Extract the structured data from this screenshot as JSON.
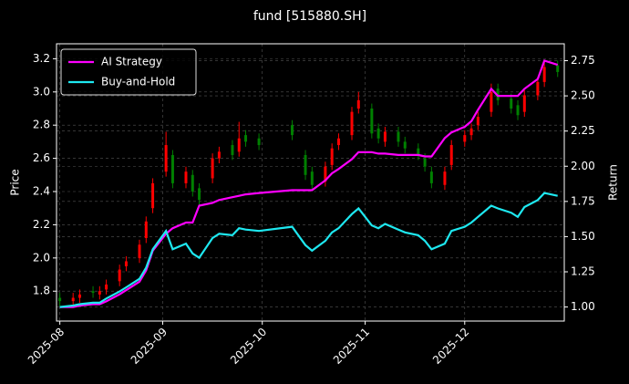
{
  "chart_data": {
    "type": "candlestick",
    "title": "fund [515880.SH]",
    "ylabel": "Price",
    "y2label": "Return",
    "x": [
      "2025-08-01",
      "2025-08-05",
      "2025-08-07",
      "2025-08-11",
      "2025-08-13",
      "2025-08-15",
      "2025-08-19",
      "2025-08-21",
      "2025-08-25",
      "2025-08-27",
      "2025-08-29",
      "2025-09-02",
      "2025-09-04",
      "2025-09-08",
      "2025-09-10",
      "2025-09-12",
      "2025-09-16",
      "2025-09-18",
      "2025-09-22",
      "2025-09-24",
      "2025-09-26",
      "2025-09-30",
      "2025-10-10",
      "2025-10-14",
      "2025-10-16",
      "2025-10-20",
      "2025-10-22",
      "2025-10-24",
      "2025-10-28",
      "2025-10-30",
      "2025-11-03",
      "2025-11-05",
      "2025-11-07",
      "2025-11-11",
      "2025-11-13",
      "2025-11-17",
      "2025-11-19",
      "2025-11-21",
      "2025-11-25",
      "2025-11-27",
      "2025-12-01",
      "2025-12-03",
      "2025-12-05",
      "2025-12-09",
      "2025-12-11",
      "2025-12-15",
      "2025-12-17",
      "2025-12-19",
      "2025-12-23",
      "2025-12-25",
      "2025-12-29"
    ],
    "xlim": [
      "2025-07-31",
      "2025-12-31"
    ],
    "xticks": [
      {
        "value": "2025-08-01",
        "label": "2025-08"
      },
      {
        "value": "2025-09-01",
        "label": "2025-09"
      },
      {
        "value": "2025-10-01",
        "label": "2025-10"
      },
      {
        "value": "2025-11-01",
        "label": "2025-11"
      },
      {
        "value": "2025-12-01",
        "label": "2025-12"
      }
    ],
    "ylim": [
      1.62,
      3.29
    ],
    "yticks": [
      1.8,
      {
        "value": 2,
        "label": "2.0"
      },
      2.2,
      2.4,
      2.6,
      2.8,
      {
        "value": 3,
        "label": "3.0"
      },
      3.2
    ],
    "y2lim": [
      0.9,
      2.87
    ],
    "y2ticks": [
      {
        "value": 1,
        "label": "1.00"
      },
      1.25,
      {
        "value": 1.5,
        "label": "1.50"
      },
      1.75,
      {
        "value": 2,
        "label": "2.00"
      },
      2.25,
      {
        "value": 2.5,
        "label": "2.50"
      },
      2.75
    ],
    "grid": true,
    "legend": "upper left",
    "candles": {
      "up_color": "#ff0000",
      "down_color": "#008000",
      "open": [
        1.76,
        1.74,
        1.76,
        1.8,
        1.78,
        1.81,
        1.86,
        1.95,
        2.0,
        2.12,
        2.3,
        2.52,
        2.62,
        2.45,
        2.5,
        2.42,
        2.48,
        2.6,
        2.68,
        2.64,
        2.74,
        2.72,
        2.8,
        2.62,
        2.52,
        2.46,
        2.56,
        2.68,
        2.74,
        2.9,
        2.9,
        2.78,
        2.7,
        2.76,
        2.7,
        2.66,
        2.6,
        2.52,
        2.44,
        2.56,
        2.7,
        2.74,
        2.8,
        2.88,
        3.02,
        2.96,
        2.92,
        2.88,
        2.98,
        3.06,
        3.16
      ],
      "high": [
        1.79,
        1.79,
        1.81,
        1.83,
        1.83,
        1.87,
        1.96,
        2.01,
        2.11,
        2.25,
        2.48,
        2.76,
        2.65,
        2.55,
        2.53,
        2.45,
        2.63,
        2.67,
        2.71,
        2.82,
        2.77,
        2.75,
        2.83,
        2.65,
        2.55,
        2.58,
        2.69,
        2.75,
        2.91,
        3.0,
        2.93,
        2.81,
        2.79,
        2.79,
        2.73,
        2.69,
        2.63,
        2.55,
        2.55,
        2.71,
        2.77,
        2.81,
        2.88,
        3.05,
        3.05,
        2.99,
        2.95,
        3.01,
        3.09,
        3.18,
        3.19
      ],
      "low": [
        1.71,
        1.71,
        1.73,
        1.76,
        1.75,
        1.78,
        1.83,
        1.92,
        1.97,
        2.09,
        2.27,
        2.49,
        2.42,
        2.42,
        2.37,
        2.32,
        2.45,
        2.57,
        2.59,
        2.61,
        2.67,
        2.65,
        2.71,
        2.47,
        2.41,
        2.43,
        2.53,
        2.65,
        2.71,
        2.87,
        2.72,
        2.69,
        2.67,
        2.67,
        2.63,
        2.59,
        2.52,
        2.42,
        2.41,
        2.53,
        2.67,
        2.71,
        2.77,
        2.85,
        2.92,
        2.87,
        2.83,
        2.85,
        2.95,
        3.03,
        3.09
      ],
      "close": [
        1.74,
        1.76,
        1.78,
        1.79,
        1.8,
        1.84,
        1.93,
        1.98,
        2.08,
        2.22,
        2.45,
        2.68,
        2.45,
        2.52,
        2.4,
        2.35,
        2.6,
        2.64,
        2.62,
        2.72,
        2.7,
        2.68,
        2.74,
        2.5,
        2.44,
        2.55,
        2.66,
        2.72,
        2.88,
        2.95,
        2.75,
        2.72,
        2.76,
        2.7,
        2.66,
        2.62,
        2.55,
        2.45,
        2.52,
        2.68,
        2.74,
        2.78,
        2.85,
        3.0,
        2.95,
        2.9,
        2.86,
        2.98,
        3.06,
        3.15,
        3.12
      ]
    },
    "series": [
      {
        "name": "AI Strategy",
        "color": "#ff00ff",
        "axis": "y2",
        "values": [
          1.0,
          1.0,
          1.01,
          1.02,
          1.02,
          1.04,
          1.09,
          1.12,
          1.18,
          1.26,
          1.4,
          1.52,
          1.56,
          1.6,
          1.6,
          1.72,
          1.74,
          1.76,
          1.78,
          1.79,
          1.8,
          1.81,
          1.83,
          1.83,
          1.83,
          1.9,
          1.95,
          1.98,
          2.05,
          2.1,
          2.1,
          2.09,
          2.09,
          2.08,
          2.08,
          2.08,
          2.07,
          2.07,
          2.2,
          2.24,
          2.28,
          2.32,
          2.4,
          2.55,
          2.5,
          2.5,
          2.5,
          2.55,
          2.62,
          2.75,
          2.72
        ]
      },
      {
        "name": "Buy-and-Hold",
        "color": "#1ee8f0",
        "axis": "y2",
        "values": [
          1.0,
          1.01,
          1.02,
          1.03,
          1.03,
          1.06,
          1.11,
          1.14,
          1.2,
          1.28,
          1.41,
          1.54,
          1.41,
          1.45,
          1.38,
          1.35,
          1.49,
          1.52,
          1.51,
          1.56,
          1.55,
          1.54,
          1.57,
          1.44,
          1.4,
          1.47,
          1.53,
          1.56,
          1.66,
          1.7,
          1.58,
          1.56,
          1.59,
          1.55,
          1.53,
          1.51,
          1.47,
          1.41,
          1.45,
          1.54,
          1.57,
          1.6,
          1.64,
          1.72,
          1.7,
          1.67,
          1.64,
          1.71,
          1.76,
          1.81,
          1.79
        ]
      }
    ]
  }
}
